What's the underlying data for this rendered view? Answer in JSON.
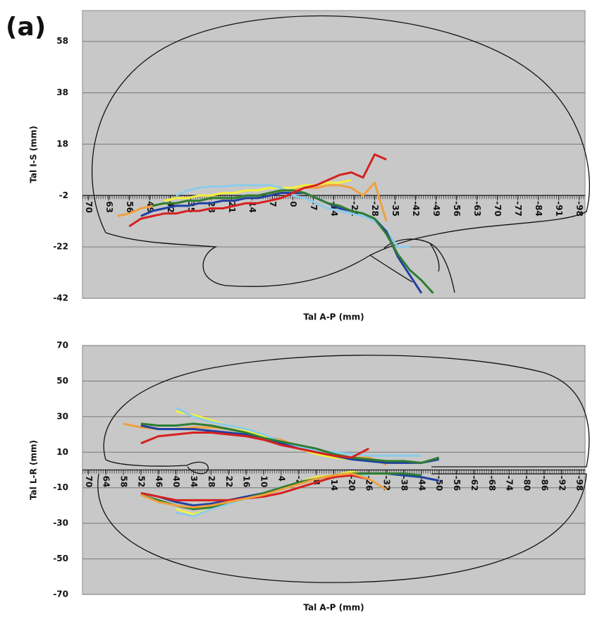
{
  "panel_label": "(a)",
  "chart_data": [
    {
      "type": "line",
      "ylabel": "Tal I-S (mm)",
      "xlabel": "Tal A-P (mm)",
      "xlim": [
        72,
        -100
      ],
      "ylim": [
        -42,
        70
      ],
      "xaxis_at": -2,
      "grid": true,
      "background": "#c8c8c8",
      "yticks": [
        -42,
        -22,
        -2,
        18,
        38,
        58
      ],
      "xticks": [
        70,
        63,
        56,
        49,
        42,
        35,
        28,
        21,
        14,
        7,
        0,
        -7,
        -14,
        -21,
        -28,
        -35,
        -42,
        -49,
        -56,
        -63,
        -70,
        -77,
        -84,
        -91,
        -98
      ],
      "x": [
        60,
        56,
        52,
        48,
        44,
        40,
        36,
        32,
        28,
        24,
        20,
        16,
        12,
        8,
        4,
        0,
        -4,
        -8,
        -12,
        -16,
        -20,
        -24,
        -28,
        -32,
        -36,
        -40,
        -44,
        -48
      ],
      "series": [
        {
          "color": "#f0a040",
          "values": [
            -10,
            -9,
            -7,
            -6,
            -5,
            -5,
            -4,
            -4,
            -3,
            -3,
            -3,
            -2,
            -2,
            -1,
            -1,
            0,
            1,
            1,
            2,
            2,
            1,
            -2,
            3,
            -12,
            null,
            null,
            null,
            null
          ]
        },
        {
          "color": "#f5f03c",
          "values": [
            null,
            null,
            null,
            null,
            -4,
            -3,
            -3,
            -2,
            -2,
            -1,
            -1,
            0,
            0,
            1,
            1,
            1,
            2,
            2,
            3,
            3,
            4,
            null,
            null,
            null,
            null,
            null,
            null,
            null
          ]
        },
        {
          "color": "#8ccbea",
          "values": [
            null,
            null,
            null,
            null,
            null,
            -2,
            0,
            1,
            1.5,
            1.5,
            2,
            2,
            2,
            2,
            1,
            -2,
            -3,
            -5,
            -7,
            -8,
            -9,
            -10,
            -12,
            -16,
            -22,
            -22,
            null,
            null
          ]
        },
        {
          "color": "#2040a0",
          "values": [
            null,
            null,
            -10,
            -8,
            -7,
            -6,
            -6,
            -5,
            -5,
            -4,
            -4,
            -3,
            -3,
            -2,
            -1,
            -1,
            -1,
            -3,
            -5,
            -7,
            -8,
            -9,
            -11,
            -16,
            -26,
            -33,
            -40,
            null
          ]
        },
        {
          "color": "#2e7d32",
          "values": [
            null,
            null,
            null,
            -6,
            -5,
            -5,
            -4,
            -4,
            -3,
            -3,
            -3,
            -2,
            -2,
            -1,
            0,
            0,
            -1,
            -3,
            -5,
            -6,
            -8,
            -9,
            -11,
            -17,
            -25,
            -31,
            -35,
            -40
          ]
        },
        {
          "color": "#d62020",
          "values": [
            null,
            -14,
            -11,
            -10,
            -9,
            -9,
            -8,
            -8,
            -7,
            -7,
            -6,
            -5,
            -5,
            -4,
            -3,
            -1,
            1,
            2,
            4,
            6,
            7,
            5,
            14,
            12,
            null,
            null,
            null,
            null
          ]
        }
      ]
    },
    {
      "type": "line",
      "ylabel": "Tal L-R (mm)",
      "xlabel": "Tal A-P (mm)",
      "xlim": [
        72,
        -100
      ],
      "ylim": [
        -70,
        70
      ],
      "xaxis_at": 0,
      "grid": true,
      "background": "#c8c8c8",
      "yticks": [
        -70,
        -50,
        -30,
        -10,
        10,
        30,
        50,
        70
      ],
      "xticks": [
        70,
        64,
        58,
        52,
        46,
        40,
        34,
        28,
        22,
        16,
        10,
        4,
        -2,
        -8,
        -14,
        -20,
        -26,
        -32,
        -38,
        -44,
        -50,
        -56,
        -62,
        -68,
        -74,
        -80,
        -86,
        -92,
        -98
      ],
      "x": [
        58,
        52,
        46,
        40,
        34,
        28,
        22,
        16,
        10,
        4,
        -2,
        -8,
        -14,
        -20,
        -26,
        -32,
        -38,
        -44,
        -50
      ],
      "series": [
        {
          "color": "#f0a040",
          "values": [
            26,
            24,
            23,
            23,
            24,
            24,
            23,
            21,
            19,
            17,
            13,
            10,
            8,
            7,
            7,
            3,
            null,
            null,
            null
          ]
        },
        {
          "color": "#f5f03c",
          "values": [
            null,
            null,
            null,
            33,
            31,
            28,
            25,
            22,
            19,
            15,
            12,
            9,
            7,
            6,
            6,
            null,
            null,
            null,
            null
          ]
        },
        {
          "color": "#8ccbea",
          "values": [
            null,
            null,
            null,
            35,
            30,
            27,
            25,
            23,
            20,
            16,
            13,
            11,
            10,
            9,
            8,
            8,
            8,
            8,
            null
          ]
        },
        {
          "color": "#2040a0",
          "values": [
            null,
            25,
            23,
            23,
            23,
            22,
            21,
            20,
            17,
            15,
            12,
            10,
            8,
            6,
            5,
            4,
            4,
            4,
            6
          ]
        },
        {
          "color": "#2e7d32",
          "values": [
            null,
            26,
            25,
            25,
            26,
            25,
            23,
            21,
            18,
            16,
            14,
            12,
            9,
            7,
            6,
            5,
            5,
            4,
            7
          ]
        },
        {
          "color": "#d62020",
          "values": [
            null,
            15,
            19,
            20,
            21,
            21,
            20,
            19,
            17,
            14,
            12,
            10,
            8,
            7,
            12,
            null,
            null,
            null,
            null
          ]
        },
        {
          "color": "#f5f03c",
          "values": [
            null,
            null,
            null,
            -22,
            -25,
            -22,
            -19,
            -16,
            -13,
            -10,
            -7,
            -4,
            -3,
            -1,
            -3,
            null,
            null,
            null,
            null
          ]
        },
        {
          "color": "#8ccbea",
          "values": [
            null,
            null,
            null,
            -24,
            -26,
            -22,
            -19,
            -16,
            -13,
            -10,
            -7,
            -5,
            -3,
            -2,
            -3,
            null,
            null,
            null,
            null
          ]
        },
        {
          "color": "#2040a0",
          "values": [
            null,
            -13,
            -15,
            -18,
            -20,
            -19,
            -17,
            -15,
            -13,
            -10,
            -7,
            -5,
            -3,
            -2,
            -2,
            -2,
            -3,
            -4,
            -6
          ]
        },
        {
          "color": "#2e7d32",
          "values": [
            null,
            -14,
            -17,
            -20,
            -22,
            -21,
            -18,
            -16,
            -13,
            -10,
            -7,
            -5,
            -3,
            -2,
            -2,
            -2,
            -2,
            -3,
            null
          ]
        },
        {
          "color": "#d62020",
          "values": [
            null,
            -13,
            -15,
            -17,
            -17,
            -17,
            -17,
            -16,
            -15,
            -13,
            -10,
            -7,
            -4,
            -3,
            -5,
            null,
            null,
            null,
            null
          ]
        },
        {
          "color": "#f0a040",
          "values": [
            null,
            -14,
            -18,
            -20,
            -21,
            -20,
            -18,
            -16,
            -14,
            -11,
            -8,
            -5,
            -3,
            -2,
            -5,
            -11,
            null,
            null,
            null
          ]
        }
      ]
    }
  ]
}
